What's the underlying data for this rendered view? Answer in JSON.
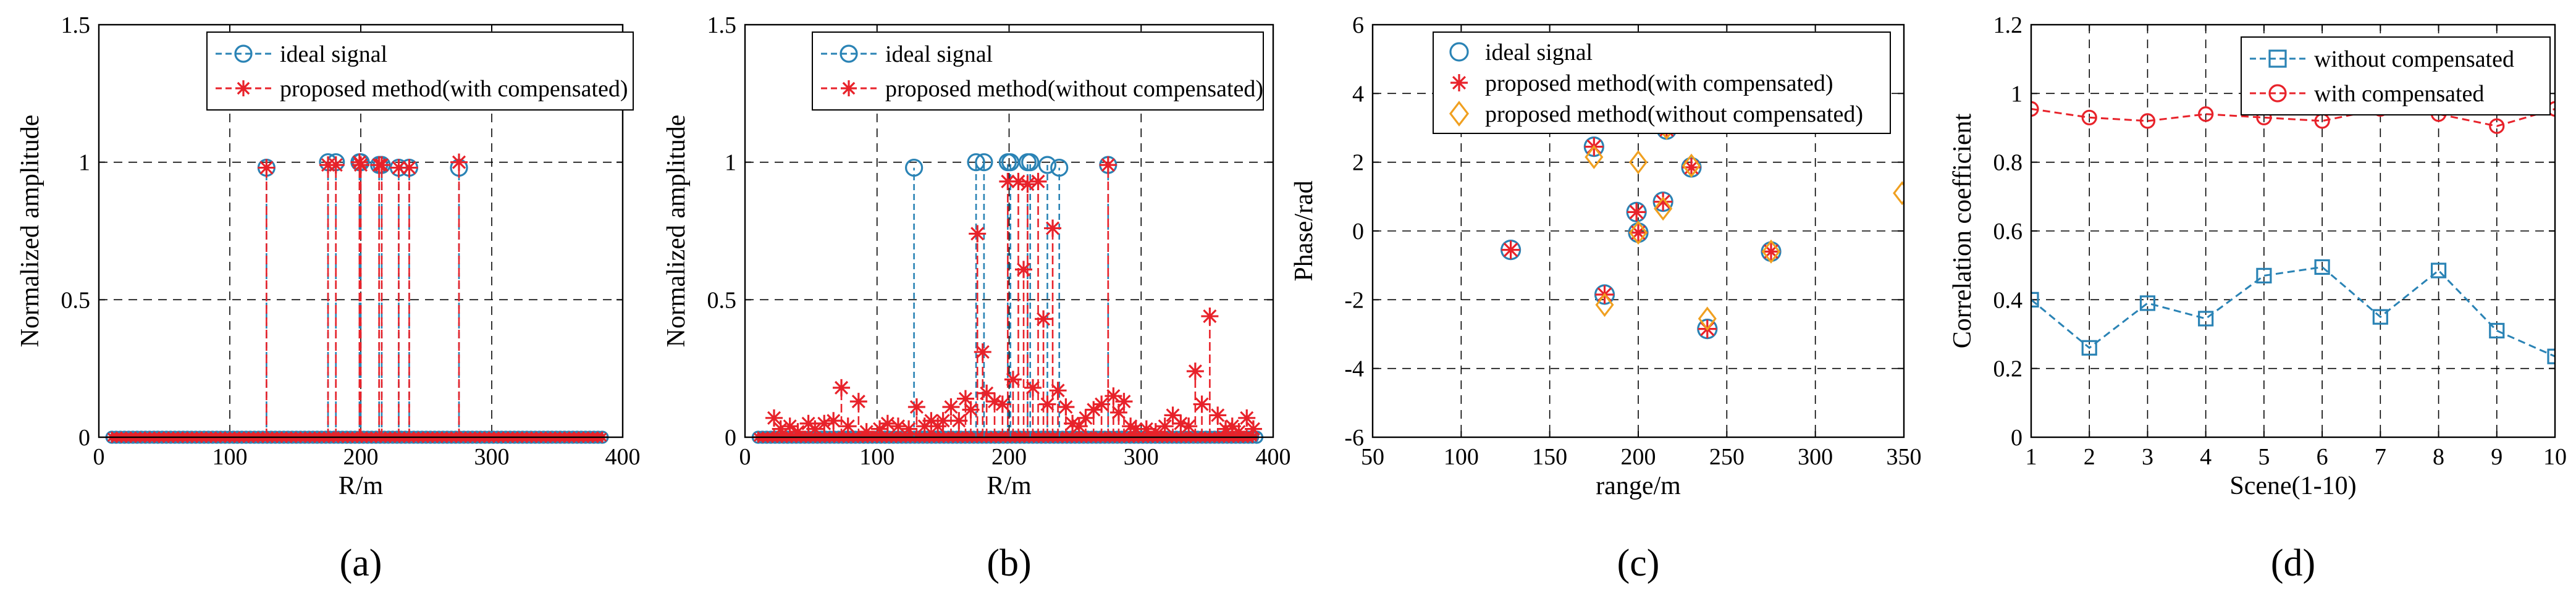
{
  "colors": {
    "blue": "#2a83b5",
    "red": "#e8222a",
    "orange": "#f0a020",
    "grid": "#000000",
    "axis": "#000000"
  },
  "chart_data": [
    {
      "id": "a",
      "type": "stem",
      "caption": "(a)",
      "xlabel": "R/m",
      "ylabel": "Normalized amplitude",
      "xlim": [
        0,
        400
      ],
      "ylim": [
        0,
        1.5
      ],
      "xticks": [
        0,
        100,
        200,
        300,
        400
      ],
      "yticks": [
        0,
        0.5,
        1,
        1.5
      ],
      "ytick_labels": [
        "0",
        "0.5",
        "1",
        "1.5"
      ],
      "grid": true,
      "legend_position": "top-center",
      "baseline_range": [
        10,
        385
      ],
      "series": [
        {
          "name": "ideal signal",
          "marker": "circle",
          "color": "blue",
          "x": [
            128,
            175,
            181,
            199,
            200,
            214,
            216,
            229,
            237,
            275
          ],
          "y": [
            0.98,
            1.0,
            1.0,
            1.0,
            1.0,
            0.99,
            0.99,
            0.98,
            0.98,
            0.98
          ]
        },
        {
          "name": "proposed method(with compensated)",
          "marker": "asterisk",
          "color": "red",
          "x": [
            128,
            175,
            181,
            199,
            200,
            214,
            216,
            229,
            237,
            275
          ],
          "y": [
            0.98,
            0.99,
            0.99,
            1.0,
            0.99,
            0.99,
            0.99,
            0.98,
            0.98,
            1.0
          ]
        }
      ]
    },
    {
      "id": "b",
      "type": "stem",
      "caption": "(b)",
      "xlabel": "R/m",
      "ylabel": "Normalized amplitude",
      "xlim": [
        0,
        400
      ],
      "ylim": [
        0,
        1.5
      ],
      "xticks": [
        0,
        100,
        200,
        300,
        400
      ],
      "yticks": [
        0,
        0.5,
        1,
        1.5
      ],
      "ytick_labels": [
        "0",
        "0.5",
        "1",
        "1.5"
      ],
      "grid": true,
      "legend_position": "top-center",
      "baseline_range": [
        10,
        388
      ],
      "series": [
        {
          "name": "ideal signal",
          "marker": "circle",
          "color": "blue",
          "x": [
            128,
            175,
            181,
            199,
            201,
            214,
            216,
            229,
            238,
            275
          ],
          "y": [
            0.98,
            1.0,
            1.0,
            1.0,
            1.0,
            1.0,
            1.0,
            0.99,
            0.98,
            0.99
          ]
        },
        {
          "name": "proposed method(without compensated)",
          "marker": "asterisk",
          "color": "red",
          "x": [
            22,
            27,
            34,
            40,
            48,
            53,
            60,
            67,
            73,
            78,
            86,
            92,
            102,
            108,
            116,
            124,
            130,
            136,
            141,
            146,
            150,
            156,
            162,
            167,
            171,
            176,
            180,
            183,
            189,
            195,
            199,
            203,
            207,
            211,
            214,
            218,
            222,
            226,
            229,
            233,
            237,
            243,
            248,
            253,
            258,
            264,
            270,
            275,
            279,
            283,
            287,
            292,
            296,
            304,
            311,
            318,
            324,
            330,
            336,
            341,
            346,
            352,
            358,
            364,
            369,
            374,
            380,
            385
          ],
          "y": [
            0.07,
            0.03,
            0.04,
            0.02,
            0.05,
            0.03,
            0.05,
            0.06,
            0.18,
            0.04,
            0.13,
            0.02,
            0.03,
            0.05,
            0.04,
            0.03,
            0.11,
            0.04,
            0.06,
            0.04,
            0.06,
            0.11,
            0.06,
            0.14,
            0.1,
            0.74,
            0.31,
            0.16,
            0.13,
            0.12,
            0.93,
            0.21,
            0.93,
            0.61,
            0.92,
            0.18,
            0.93,
            0.43,
            0.12,
            0.76,
            0.17,
            0.11,
            0.05,
            0.04,
            0.07,
            0.1,
            0.12,
            0.99,
            0.15,
            0.09,
            0.13,
            0.04,
            0.03,
            0.03,
            0.02,
            0.04,
            0.08,
            0.05,
            0.04,
            0.24,
            0.12,
            0.44,
            0.08,
            0.03,
            0.04,
            0.02,
            0.07,
            0.03
          ]
        }
      ]
    },
    {
      "id": "c",
      "type": "scatter",
      "caption": "(c)",
      "xlabel": "range/m",
      "ylabel": "Phase/rad",
      "xlim": [
        50,
        350
      ],
      "ylim": [
        -6,
        6
      ],
      "xticks": [
        50,
        100,
        150,
        200,
        250,
        300,
        350
      ],
      "yticks": [
        -6,
        -4,
        -2,
        0,
        2,
        4,
        6
      ],
      "ytick_labels": [
        "-6",
        "-4",
        "-2",
        "0",
        "2",
        "4",
        "6"
      ],
      "grid": true,
      "legend_position": "top-left",
      "series": [
        {
          "name": "ideal signal",
          "marker": "circle",
          "color": "blue",
          "x": [
            128,
            175,
            181,
            199,
            200,
            214,
            216,
            230,
            239,
            275
          ],
          "y": [
            -0.55,
            2.45,
            -1.85,
            0.55,
            -0.05,
            0.85,
            2.95,
            1.85,
            -2.85,
            -0.6
          ]
        },
        {
          "name": "proposed method(with compensated)",
          "marker": "asterisk",
          "color": "red",
          "x": [
            128,
            175,
            181,
            199,
            200,
            214,
            216,
            230,
            239,
            275
          ],
          "y": [
            -0.55,
            2.45,
            -1.85,
            0.55,
            -0.05,
            0.85,
            2.95,
            1.85,
            -2.85,
            -0.6
          ]
        },
        {
          "name": "proposed method(without compensated)",
          "marker": "diamond",
          "color": "orange",
          "x": [
            175,
            181,
            200,
            200,
            214,
            216,
            230,
            239,
            275,
            349
          ],
          "y": [
            2.15,
            -2.15,
            2.0,
            -0.05,
            0.65,
            3.0,
            1.9,
            -2.55,
            -0.6,
            1.1
          ]
        }
      ]
    },
    {
      "id": "d",
      "type": "line",
      "caption": "(d)",
      "xlabel": "Scene(1-10)",
      "ylabel": "Correlation coefficient",
      "xlim": [
        1,
        10
      ],
      "ylim": [
        0,
        1.2
      ],
      "xticks": [
        1,
        2,
        3,
        4,
        5,
        6,
        7,
        8,
        9,
        10
      ],
      "yticks": [
        0,
        0.2,
        0.4,
        0.6,
        0.8,
        1,
        1.2
      ],
      "ytick_labels": [
        "0",
        "0.2",
        "0.4",
        "0.6",
        "0.8",
        "1",
        "1.2"
      ],
      "grid": true,
      "legend_position": "top-right",
      "series": [
        {
          "name": "without compensated",
          "marker": "square",
          "color": "blue",
          "x": [
            1,
            2,
            3,
            4,
            5,
            6,
            7,
            8,
            9,
            10
          ],
          "y": [
            0.4,
            0.26,
            0.39,
            0.345,
            0.47,
            0.495,
            0.35,
            0.485,
            0.31,
            0.235
          ]
        },
        {
          "name": "with compensated",
          "marker": "circle",
          "color": "red",
          "x": [
            1,
            2,
            3,
            4,
            5,
            6,
            7,
            8,
            9,
            10
          ],
          "y": [
            0.955,
            0.93,
            0.92,
            0.94,
            0.93,
            0.92,
            0.955,
            0.94,
            0.905,
            0.955
          ]
        }
      ]
    }
  ]
}
